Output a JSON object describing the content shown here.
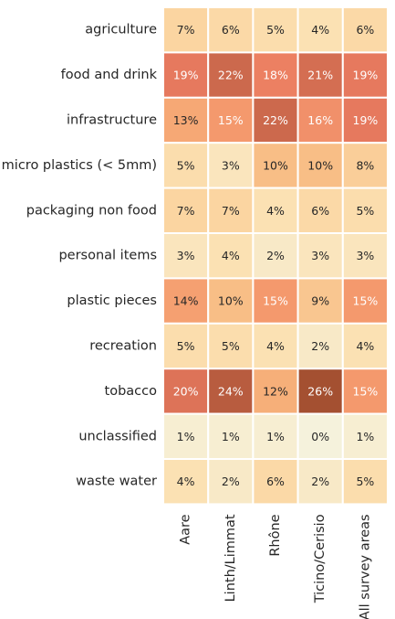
{
  "chart_data": {
    "type": "heatmap",
    "title": "",
    "xlabel": "",
    "ylabel": "",
    "colorbar": false,
    "value_format": "percent",
    "columns": [
      "Aare",
      "Linth/Limmat",
      "Rhône",
      "Ticino/Cerisio",
      "All survey areas"
    ],
    "rows": [
      "agriculture",
      "food and drink",
      "infrastructure",
      "micro plastics (< 5mm)",
      "packaging non food",
      "personal items",
      "plastic pieces",
      "recreation",
      "tobacco",
      "unclassified",
      "waste water"
    ],
    "values": [
      [
        7,
        6,
        5,
        4,
        6
      ],
      [
        19,
        22,
        18,
        21,
        19
      ],
      [
        13,
        15,
        22,
        16,
        19
      ],
      [
        5,
        3,
        10,
        10,
        8
      ],
      [
        7,
        7,
        4,
        6,
        5
      ],
      [
        3,
        4,
        2,
        3,
        3
      ],
      [
        14,
        10,
        15,
        9,
        15
      ],
      [
        5,
        5,
        4,
        2,
        4
      ],
      [
        20,
        24,
        12,
        26,
        15
      ],
      [
        1,
        1,
        1,
        0,
        1
      ],
      [
        4,
        2,
        6,
        2,
        5
      ]
    ],
    "color_scale": {
      "min": 0,
      "max": 26,
      "stops": [
        "#f5f2dc",
        "#fbe2b5",
        "#fbd39e",
        "#f7b57c",
        "#f49a6e",
        "#ea7b60",
        "#c9674b",
        "#a45031"
      ]
    }
  }
}
